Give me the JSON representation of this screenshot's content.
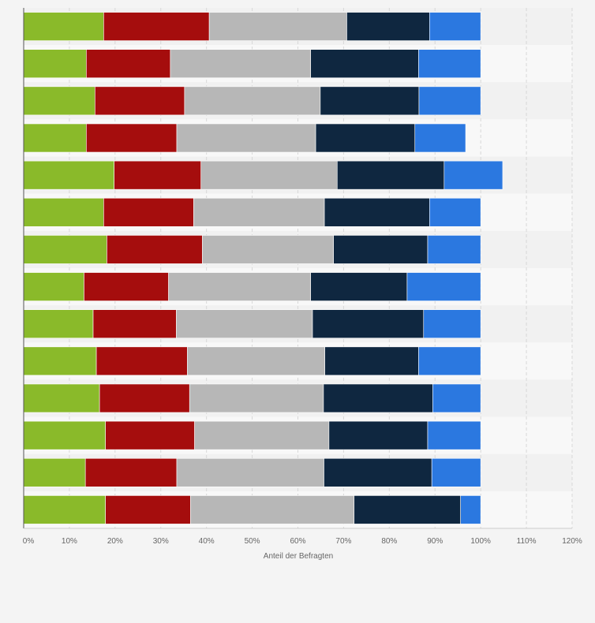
{
  "chart_data": {
    "type": "bar",
    "orientation": "horizontal",
    "stacked": true,
    "title": "",
    "xlabel": "Anteil der Befragten",
    "ylabel": "",
    "xlim": [
      0,
      120
    ],
    "x_ticks": [
      "0%",
      "10%",
      "20%",
      "30%",
      "40%",
      "50%",
      "60%",
      "70%",
      "80%",
      "90%",
      "100%",
      "110%",
      "120%"
    ],
    "grid": true,
    "legend": "none",
    "categories": [
      "",
      "",
      "",
      "",
      "",
      "",
      "",
      "",
      "",
      "",
      "",
      "",
      "",
      ""
    ],
    "series": [
      {
        "color": "#8aba2a",
        "values": [
          17.5,
          13.7,
          15.6,
          13.7,
          19.8,
          17.5,
          18.2,
          13.2,
          15.2,
          15.9,
          16.6,
          17.9,
          13.5,
          17.9
        ]
      },
      {
        "color": "#a50d0d",
        "values": [
          23.1,
          18.4,
          19.6,
          19.8,
          19.0,
          19.7,
          20.9,
          18.5,
          18.2,
          19.9,
          19.7,
          19.5,
          20.0,
          18.6
        ]
      },
      {
        "color": "#b7b7b7",
        "values": [
          30.1,
          30.7,
          29.7,
          30.4,
          29.8,
          28.6,
          28.7,
          31.1,
          29.8,
          30.1,
          29.3,
          29.4,
          32.2,
          35.8
        ]
      },
      {
        "color": "#0f2740",
        "values": [
          18.1,
          23.6,
          21.6,
          21.7,
          23.4,
          23.0,
          20.6,
          21.1,
          24.3,
          20.5,
          23.9,
          21.6,
          23.6,
          23.3
        ]
      },
      {
        "color": "#2b78e0",
        "values": [
          11.2,
          13.6,
          13.5,
          11.1,
          12.8,
          11.2,
          11.6,
          16.1,
          12.5,
          13.6,
          10.5,
          11.6,
          10.7,
          4.4
        ]
      }
    ]
  }
}
